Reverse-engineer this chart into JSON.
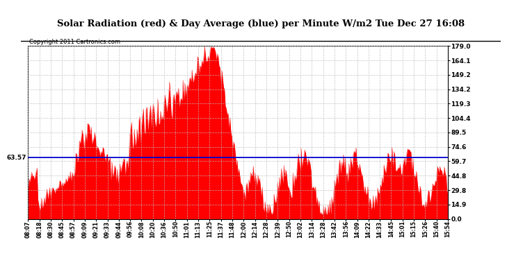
{
  "title": "Solar Radiation (red) & Day Average (blue) per Minute W/m2 Tue Dec 27 16:08",
  "copyright": "Copyright 2011 Cartronics.com",
  "avg_value": 63.57,
  "y_max": 179.0,
  "y_min": 0.0,
  "y_ticks": [
    0.0,
    14.9,
    29.8,
    44.8,
    59.7,
    74.6,
    89.5,
    104.4,
    119.3,
    134.2,
    149.2,
    164.1,
    179.0
  ],
  "x_labels": [
    "08:07",
    "08:18",
    "08:30",
    "08:45",
    "08:57",
    "09:09",
    "09:21",
    "09:33",
    "09:44",
    "09:56",
    "10:08",
    "10:20",
    "10:36",
    "10:50",
    "11:01",
    "11:13",
    "11:25",
    "11:37",
    "11:48",
    "12:00",
    "12:14",
    "12:28",
    "12:39",
    "12:50",
    "13:02",
    "13:14",
    "13:28",
    "13:42",
    "13:56",
    "14:09",
    "14:22",
    "14:33",
    "14:45",
    "15:01",
    "15:15",
    "15:26",
    "15:40",
    "15:54"
  ],
  "bar_color": "#FF0000",
  "line_color": "#0000CC",
  "bg_color": "#FFFFFF",
  "grid_color": "#BBBBBB"
}
